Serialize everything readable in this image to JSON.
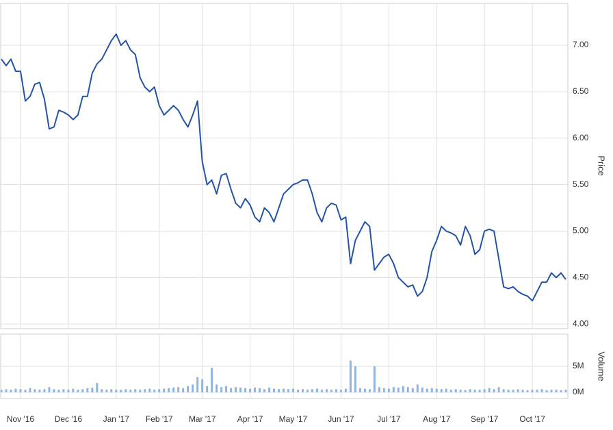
{
  "chart_data": [
    {
      "type": "line",
      "y_label": "Price",
      "grid": true,
      "ylim": [
        3.95,
        7.45
      ],
      "yticks": [
        {
          "value": 4,
          "label": "4.00"
        },
        {
          "value": 4.5,
          "label": "4.50"
        },
        {
          "value": 5,
          "label": "5.00"
        },
        {
          "value": 5.5,
          "label": "5.50"
        },
        {
          "value": 6,
          "label": "6.00"
        },
        {
          "value": 6.5,
          "label": "6.50"
        },
        {
          "value": 7,
          "label": "7.00"
        }
      ],
      "series": [
        {
          "color": "#2553a4",
          "values": [
            6.85,
            6.78,
            6.85,
            6.72,
            6.72,
            6.4,
            6.45,
            6.58,
            6.6,
            6.42,
            6.1,
            6.12,
            6.3,
            6.28,
            6.25,
            6.2,
            6.25,
            6.45,
            6.45,
            6.7,
            6.8,
            6.85,
            6.95,
            7.05,
            7.12,
            7.0,
            7.05,
            6.95,
            6.9,
            6.65,
            6.55,
            6.5,
            6.55,
            6.35,
            6.25,
            6.3,
            6.35,
            6.3,
            6.2,
            6.12,
            6.25,
            6.4,
            5.75,
            5.5,
            5.55,
            5.4,
            5.6,
            5.62,
            5.45,
            5.3,
            5.25,
            5.35,
            5.28,
            5.15,
            5.1,
            5.25,
            5.2,
            5.1,
            5.25,
            5.4,
            5.45,
            5.5,
            5.52,
            5.55,
            5.55,
            5.4,
            5.2,
            5.1,
            5.25,
            5.3,
            5.28,
            5.12,
            5.15,
            4.65,
            4.9,
            5.0,
            5.1,
            5.05,
            4.58,
            4.65,
            4.72,
            4.75,
            4.65,
            4.5,
            4.45,
            4.4,
            4.42,
            4.3,
            4.35,
            4.5,
            4.78,
            4.9,
            5.05,
            5.0,
            4.98,
            4.95,
            4.85,
            5.05,
            4.95,
            4.75,
            4.8,
            5.0,
            5.02,
            5.0,
            4.7,
            4.4,
            4.38,
            4.4,
            4.35,
            4.32,
            4.3,
            4.25,
            4.35,
            4.45,
            4.45,
            4.55,
            4.5,
            4.55,
            4.48
          ]
        }
      ]
    },
    {
      "type": "bar",
      "y_label": "Volume",
      "grid": true,
      "ylim": [
        -1.2,
        11.2
      ],
      "yticks": [
        {
          "value": 0,
          "label": "0M"
        },
        {
          "value": 5,
          "label": "5M"
        }
      ],
      "categories": [
        null,
        null,
        null,
        null,
        "Nov '16",
        null,
        null,
        null,
        null,
        null,
        null,
        null,
        null,
        null,
        "Dec '16",
        null,
        null,
        null,
        null,
        null,
        null,
        null,
        null,
        null,
        "Jan '17",
        null,
        null,
        null,
        null,
        null,
        null,
        null,
        null,
        "Feb '17",
        null,
        null,
        null,
        null,
        null,
        null,
        null,
        null,
        "Mar '17",
        null,
        null,
        null,
        null,
        null,
        null,
        null,
        null,
        null,
        "Apr '17",
        null,
        null,
        null,
        null,
        null,
        null,
        null,
        null,
        "May '17",
        null,
        null,
        null,
        null,
        null,
        null,
        null,
        null,
        null,
        "Jun '17",
        null,
        null,
        null,
        null,
        null,
        null,
        null,
        null,
        null,
        "Jul '17",
        null,
        null,
        null,
        null,
        null,
        null,
        null,
        null,
        null,
        "Aug '17",
        null,
        null,
        null,
        null,
        null,
        null,
        null,
        null,
        null,
        "Sep '17",
        null,
        null,
        null,
        null,
        null,
        null,
        null,
        null,
        null,
        "Oct '17",
        null,
        null,
        null,
        null,
        null,
        null,
        null
      ],
      "series": [
        {
          "color": "#8fb4e0",
          "values": [
            0.5,
            0.6,
            0.5,
            0.7,
            0.6,
            0.5,
            0.8,
            0.6,
            0.5,
            0.6,
            1.0,
            0.6,
            0.5,
            0.6,
            0.5,
            0.7,
            0.5,
            0.6,
            0.8,
            0.9,
            1.8,
            0.6,
            0.5,
            0.6,
            0.5,
            0.5,
            0.6,
            0.5,
            0.6,
            0.5,
            0.6,
            0.7,
            0.5,
            0.6,
            0.7,
            0.8,
            0.9,
            1.0,
            0.8,
            1.2,
            1.5,
            2.9,
            2.5,
            1.2,
            4.7,
            1.5,
            1.0,
            1.2,
            0.8,
            1.0,
            0.9,
            0.8,
            0.7,
            0.9,
            0.8,
            0.6,
            0.9,
            0.7,
            0.6,
            0.7,
            0.6,
            0.7,
            0.5,
            0.6,
            0.5,
            0.6,
            0.7,
            0.5,
            0.6,
            0.5,
            0.6,
            0.5,
            0.7,
            6.1,
            5.0,
            0.8,
            0.7,
            0.6,
            5.0,
            1.0,
            0.8,
            0.7,
            1.0,
            0.9,
            1.2,
            1.0,
            0.8,
            1.5,
            0.9,
            0.7,
            0.8,
            0.7,
            0.6,
            0.7,
            0.5,
            0.6,
            0.5,
            0.4,
            0.6,
            0.5,
            0.5,
            0.6,
            0.8,
            0.6,
            1.0,
            0.6,
            0.5,
            0.5,
            0.6,
            0.5,
            0.4,
            0.5,
            0.5,
            0.6,
            0.4,
            0.5,
            0.5,
            0.4,
            0.5
          ]
        }
      ]
    }
  ]
}
